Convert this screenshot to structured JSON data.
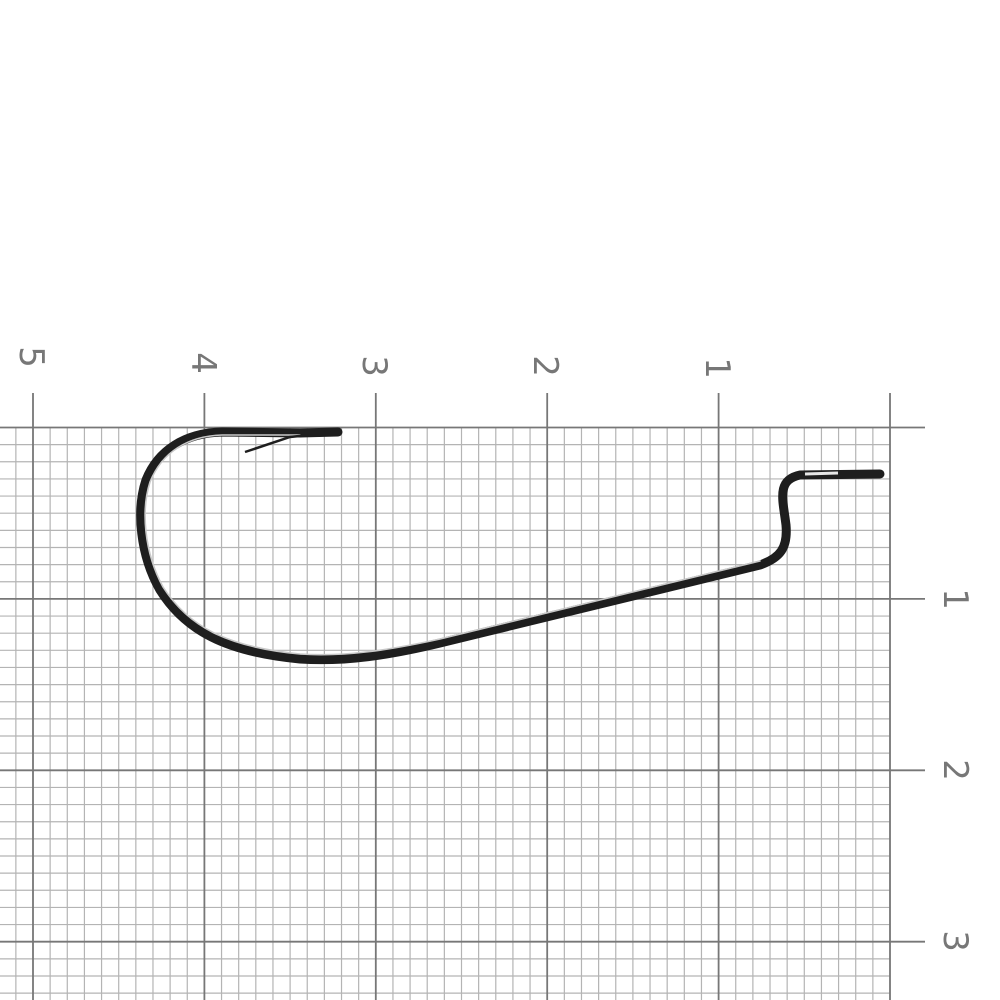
{
  "ruler": {
    "top_labels": [
      "5",
      "4",
      "3",
      "2",
      "1"
    ],
    "right_labels": [
      "1",
      "2",
      "3"
    ]
  },
  "colors": {
    "minor_grid": "#b4b4b4",
    "major_grid": "#777777",
    "hook": "#1e1e1e",
    "label": "#777777"
  }
}
